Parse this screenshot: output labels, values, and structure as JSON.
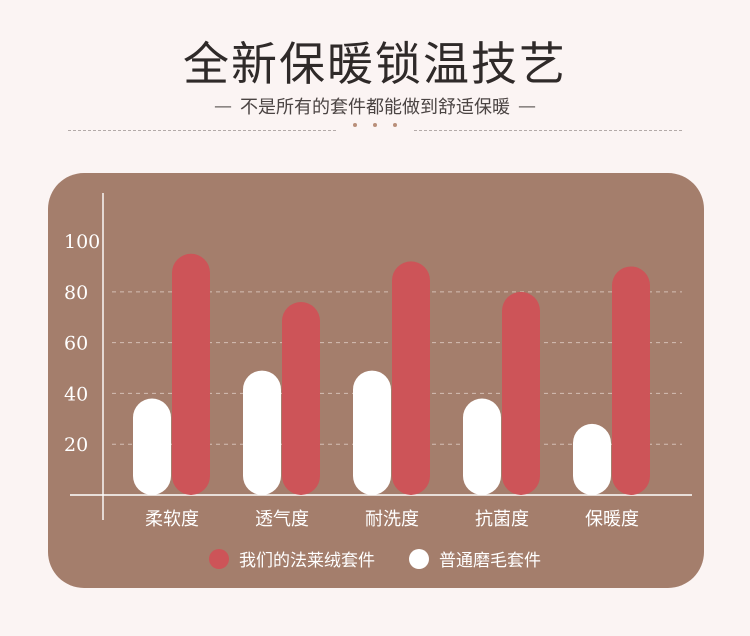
{
  "header": {
    "title": "全新保暖锁温技艺",
    "subtitle": "不是所有的套件都能做到舒适保暖",
    "dash_left": "—",
    "dash_right": "—"
  },
  "colors": {
    "background": "#fbf4f3",
    "panel": "#a47e6c",
    "red_series": "#cd5458",
    "white_series": "#ffffff"
  },
  "chart_data": {
    "type": "bar",
    "categories": [
      "柔软度",
      "透气度",
      "耐洗度",
      "抗菌度",
      "保暖度"
    ],
    "series": [
      {
        "name": "普通磨毛套件",
        "color": "#ffffff",
        "values": [
          38,
          49,
          49,
          38,
          28
        ]
      },
      {
        "name": "我们的法莱绒套件",
        "color": "#cd5458",
        "values": [
          95,
          76,
          92,
          80,
          90
        ]
      }
    ],
    "yticks": [
      20,
      40,
      60,
      80,
      100
    ],
    "ylim": [
      0,
      115
    ],
    "grid": true,
    "legend_position": "bottom"
  }
}
